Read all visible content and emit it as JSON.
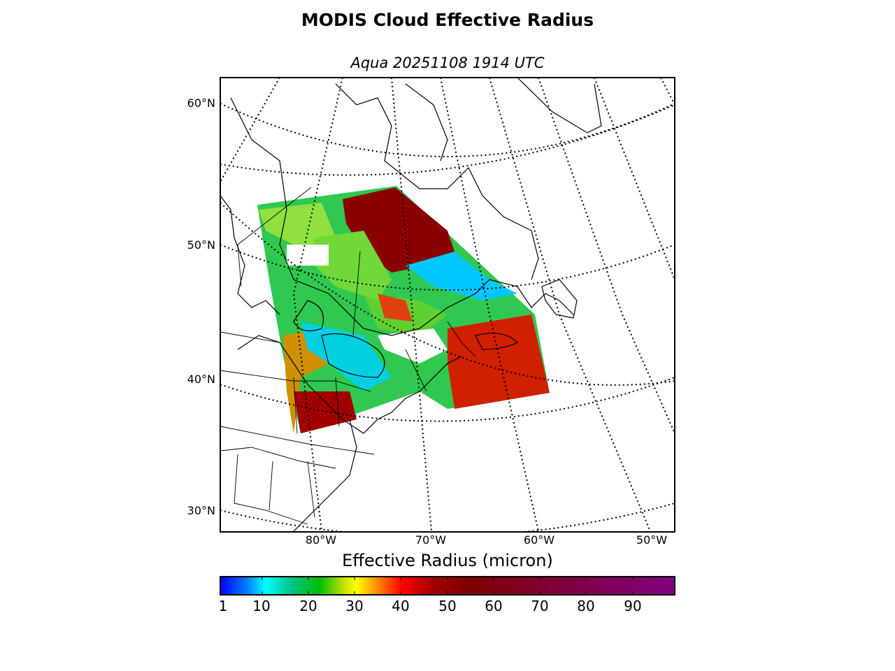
{
  "title": "MODIS Cloud Effective Radius",
  "subtitle": "Aqua 20251108 1914 UTC",
  "map": {
    "lat_labels": [
      "60°N",
      "50°N",
      "40°N",
      "30°N"
    ],
    "lon_labels": [
      "80°W",
      "70°W",
      "60°W",
      "50°W"
    ],
    "frame_color": "#000000",
    "grid_style": "dotted"
  },
  "colorbar": {
    "label": "Effective Radius (micron)",
    "ticks": [
      "1",
      "10",
      "20",
      "30",
      "40",
      "50",
      "60",
      "70",
      "80",
      "90"
    ],
    "range": [
      1,
      99
    ],
    "colors": [
      "#0000ff",
      "#0080ff",
      "#00ffff",
      "#00c080",
      "#00c000",
      "#c0e000",
      "#ffff00",
      "#ff8000",
      "#ff0000",
      "#a00000",
      "#800000",
      "#800040",
      "#800080"
    ]
  }
}
